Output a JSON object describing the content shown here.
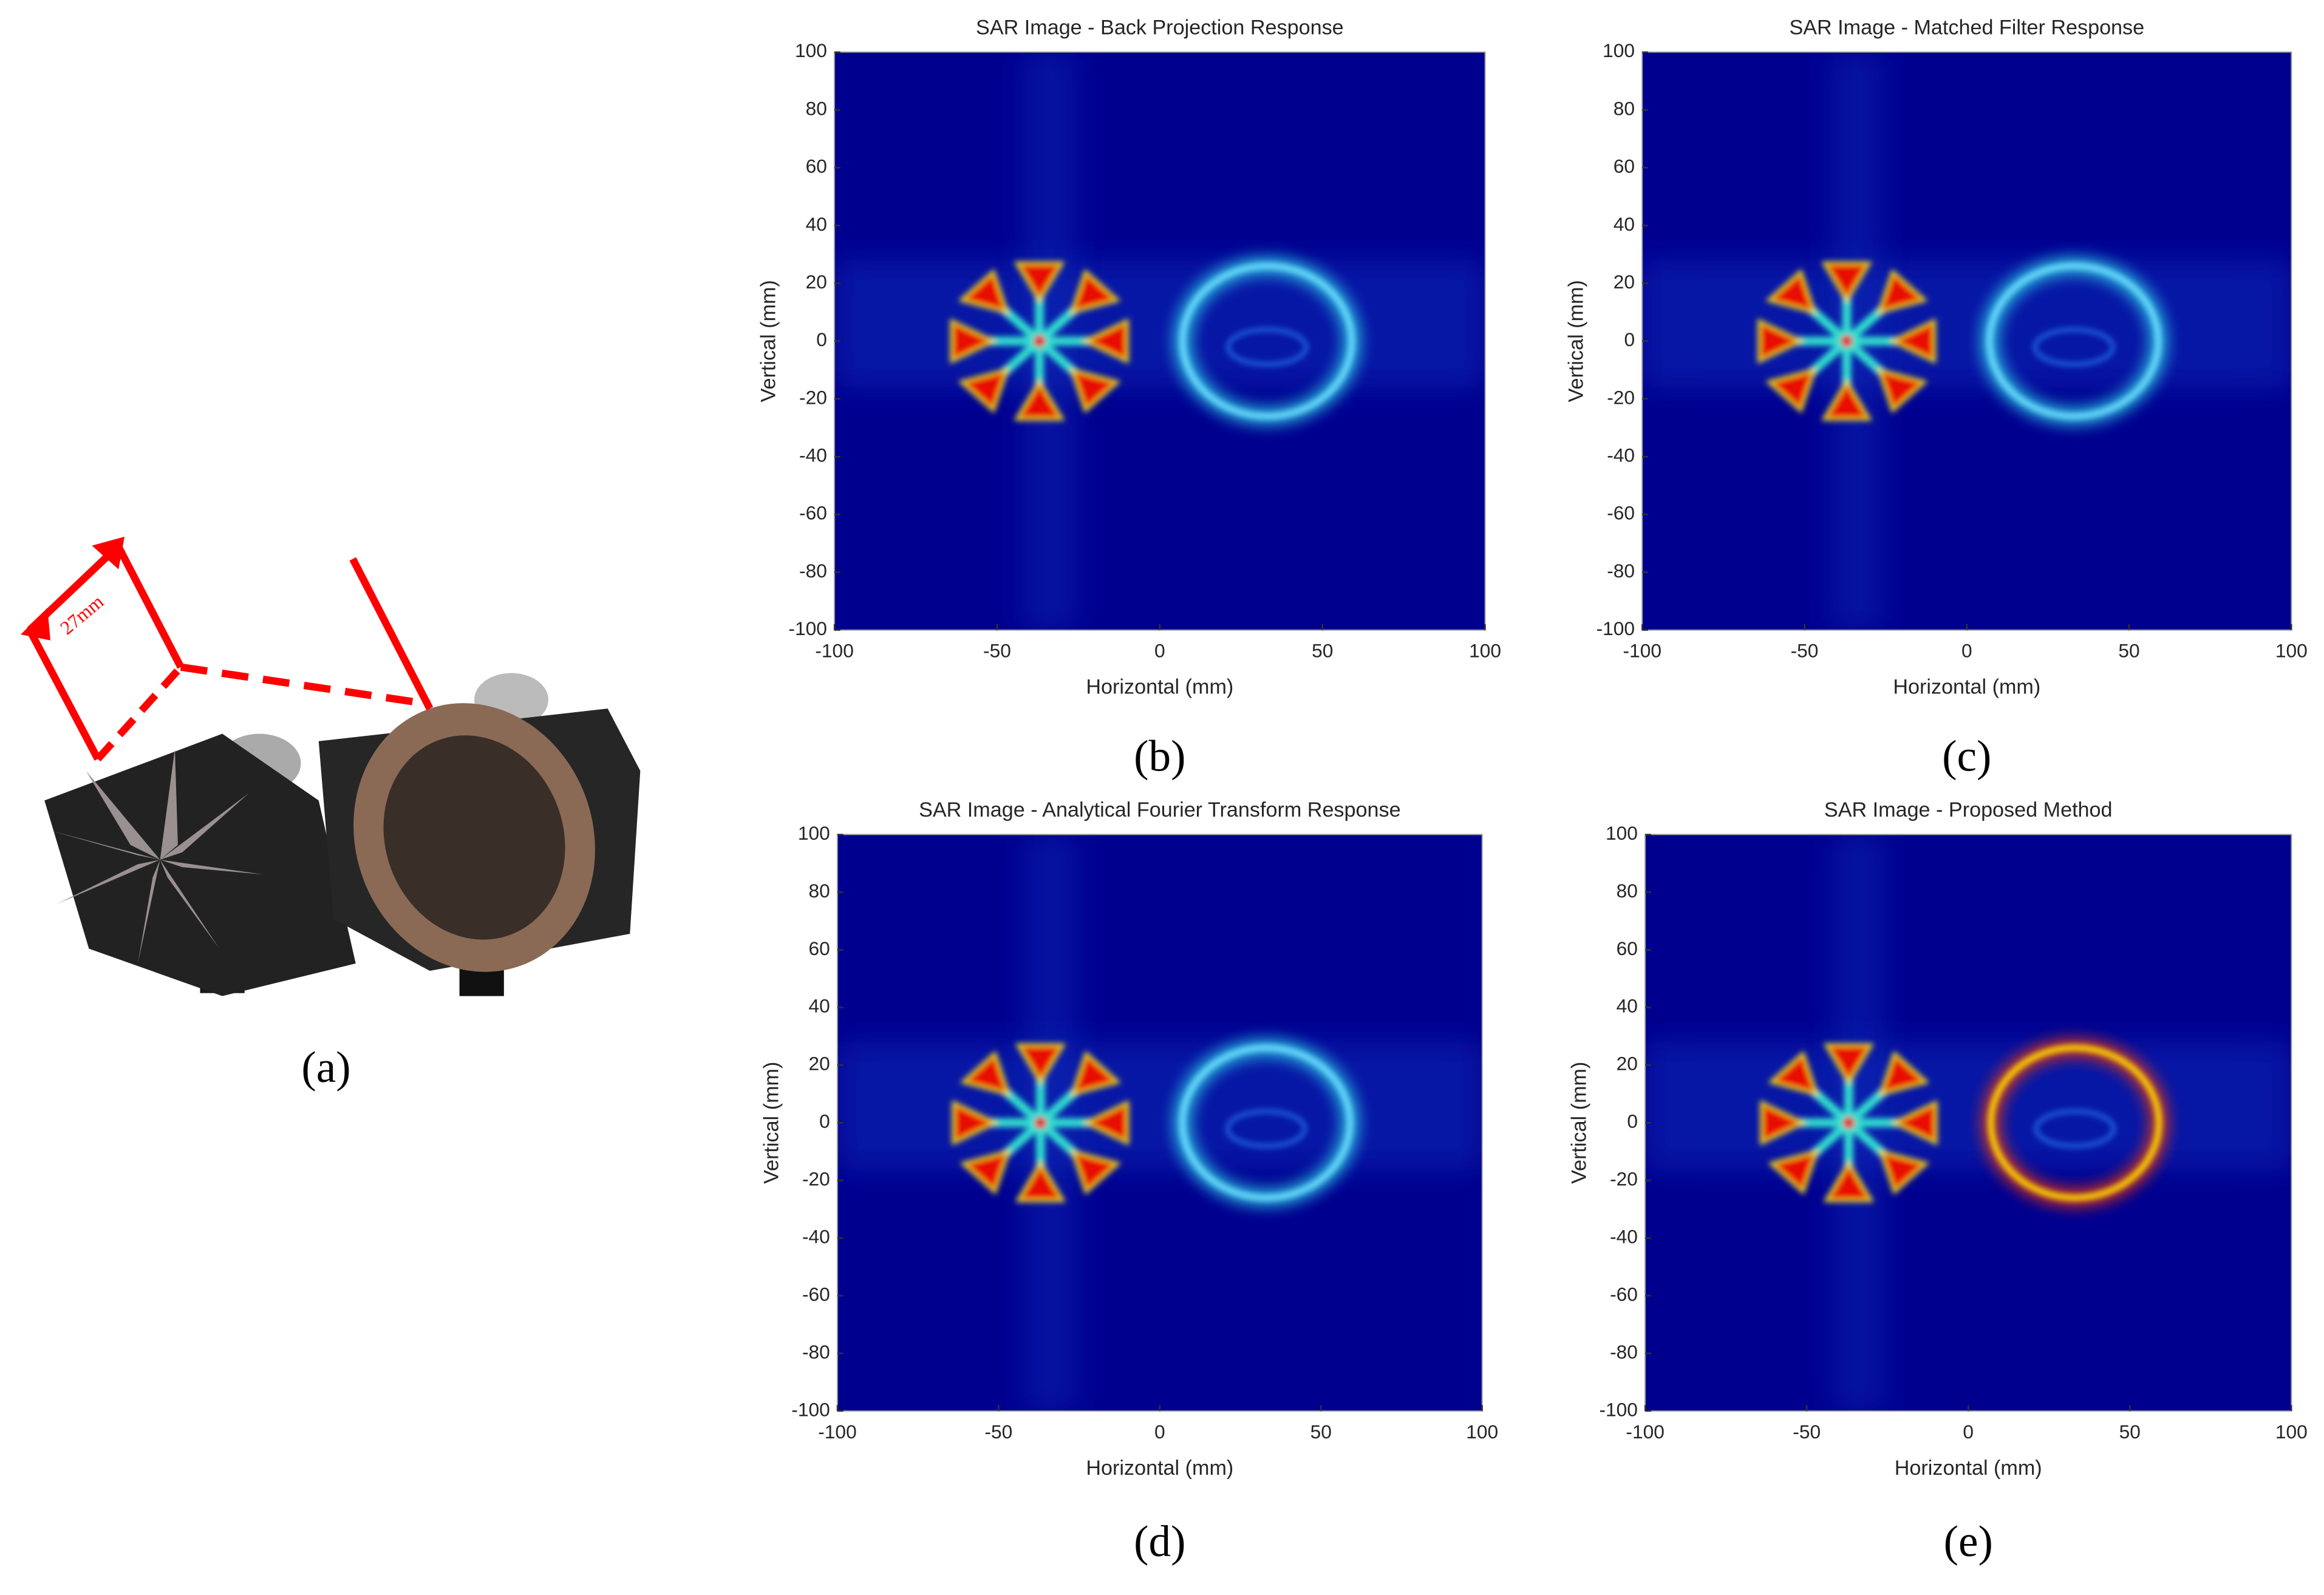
{
  "photo": {
    "dimension_label": "27mm",
    "caption": "(a)"
  },
  "chart_data": [
    {
      "type": "heatmap",
      "title": "SAR Image - Back Projection Response",
      "xlabel": "Horizontal (mm)",
      "ylabel": "Vertical (mm)",
      "xlim": [
        -100,
        100
      ],
      "ylim": [
        -100,
        100
      ],
      "xticks": [
        -100,
        -50,
        0,
        50,
        100
      ],
      "yticks": [
        -100,
        -80,
        -60,
        -40,
        -20,
        0,
        20,
        40,
        60,
        80,
        100
      ],
      "caption": "(b)"
    },
    {
      "type": "heatmap",
      "title": "SAR Image - Matched Filter Response",
      "xlabel": "Horizontal (mm)",
      "ylabel": "Vertical (mm)",
      "xlim": [
        -100,
        100
      ],
      "ylim": [
        -100,
        100
      ],
      "xticks": [
        -100,
        -50,
        0,
        50,
        100
      ],
      "yticks": [
        -100,
        -80,
        -60,
        -40,
        -20,
        0,
        20,
        40,
        60,
        80,
        100
      ],
      "caption": "(c)"
    },
    {
      "type": "heatmap",
      "title": "SAR Image - Analytical Fourier Transform Response",
      "xlabel": "Horizontal (mm)",
      "ylabel": "Vertical (mm)",
      "xlim": [
        -100,
        100
      ],
      "ylim": [
        -100,
        100
      ],
      "xticks": [
        -100,
        -50,
        0,
        50,
        100
      ],
      "yticks": [
        -100,
        -80,
        -60,
        -40,
        -20,
        0,
        20,
        40,
        60,
        80,
        100
      ],
      "caption": "(d)"
    },
    {
      "type": "heatmap",
      "title": "SAR Image - Proposed Method",
      "xlabel": "Horizontal (mm)",
      "ylabel": "Vertical (mm)",
      "xlim": [
        -100,
        100
      ],
      "ylim": [
        -100,
        100
      ],
      "xticks": [
        -100,
        -50,
        0,
        50,
        100
      ],
      "yticks": [
        -100,
        -80,
        -60,
        -40,
        -20,
        0,
        20,
        40,
        60,
        80,
        100
      ],
      "caption": "(e)"
    }
  ]
}
